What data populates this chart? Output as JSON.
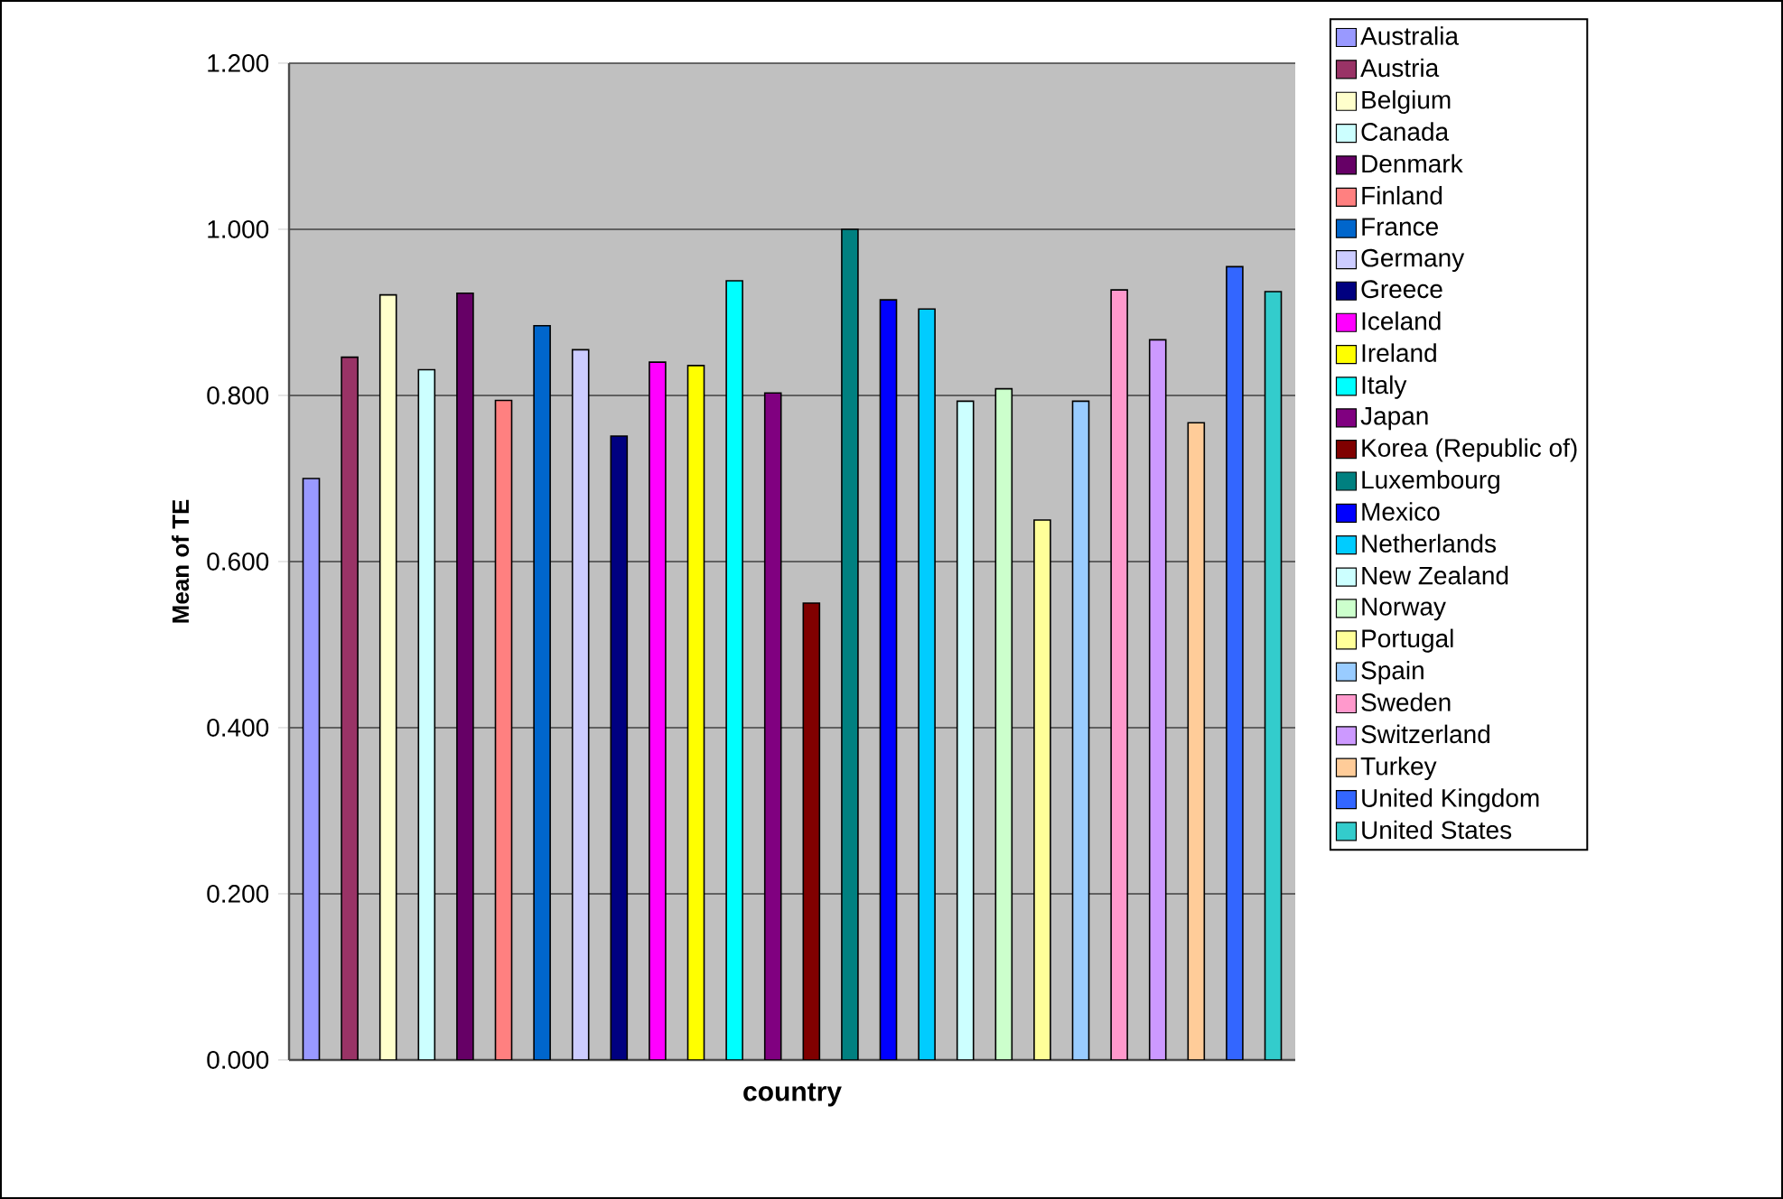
{
  "chart_data": {
    "type": "bar",
    "xlabel": "country",
    "ylabel": "Mean of TE",
    "categories": [
      null
    ],
    "ylim": [
      0,
      1.2
    ],
    "yticks": [
      {
        "value": 0,
        "label": "0.000"
      },
      {
        "value": 0.2,
        "label": "0.200"
      },
      {
        "value": 0.4,
        "label": "0.400"
      },
      {
        "value": 0.6,
        "label": "0.600"
      },
      {
        "value": 0.8,
        "label": "0.800"
      },
      {
        "value": 1.0,
        "label": "1.000"
      },
      {
        "value": 1.2,
        "label": "1.200"
      }
    ],
    "grid": "y",
    "legend": "right",
    "series": [
      {
        "name": "Australia",
        "color": "#9999ff",
        "values": [
          0.7
        ]
      },
      {
        "name": "Austria",
        "color": "#993366",
        "values": [
          0.846
        ]
      },
      {
        "name": "Belgium",
        "color": "#ffffcc",
        "values": [
          0.921
        ]
      },
      {
        "name": "Canada",
        "color": "#ccffff",
        "values": [
          0.831
        ]
      },
      {
        "name": "Denmark",
        "color": "#660066",
        "values": [
          0.923
        ]
      },
      {
        "name": "Finland",
        "color": "#ff8080",
        "values": [
          0.794
        ]
      },
      {
        "name": "France",
        "color": "#0066cc",
        "values": [
          0.884
        ]
      },
      {
        "name": "Germany",
        "color": "#ccccff",
        "values": [
          0.855
        ]
      },
      {
        "name": "Greece",
        "color": "#000080",
        "values": [
          0.751
        ]
      },
      {
        "name": "Iceland",
        "color": "#ff00ff",
        "values": [
          0.84
        ]
      },
      {
        "name": "Ireland",
        "color": "#ffff00",
        "values": [
          0.836
        ]
      },
      {
        "name": "Italy",
        "color": "#00ffff",
        "values": [
          0.938
        ]
      },
      {
        "name": "Japan",
        "color": "#800080",
        "values": [
          0.803
        ]
      },
      {
        "name": "Korea (Republic of)",
        "color": "#800000",
        "values": [
          0.55
        ]
      },
      {
        "name": "Luxembourg",
        "color": "#008080",
        "values": [
          1.0
        ]
      },
      {
        "name": "Mexico",
        "color": "#0000ff",
        "values": [
          0.915
        ]
      },
      {
        "name": "Netherlands",
        "color": "#00ccff",
        "values": [
          0.904
        ]
      },
      {
        "name": "New Zealand",
        "color": "#ccffff",
        "values": [
          0.793
        ]
      },
      {
        "name": "Norway",
        "color": "#ccffcc",
        "values": [
          0.808
        ]
      },
      {
        "name": "Portugal",
        "color": "#ffff99",
        "values": [
          0.65
        ]
      },
      {
        "name": "Spain",
        "color": "#99ccff",
        "values": [
          0.793
        ]
      },
      {
        "name": "Sweden",
        "color": "#ff99cc",
        "values": [
          0.927
        ]
      },
      {
        "name": "Switzerland",
        "color": "#cc99ff",
        "values": [
          0.867
        ]
      },
      {
        "name": "Turkey",
        "color": "#ffcc99",
        "values": [
          0.767
        ]
      },
      {
        "name": "United Kingdom",
        "color": "#3366ff",
        "values": [
          0.955
        ]
      },
      {
        "name": "United States",
        "color": "#33cccc",
        "values": [
          0.925
        ]
      }
    ]
  }
}
